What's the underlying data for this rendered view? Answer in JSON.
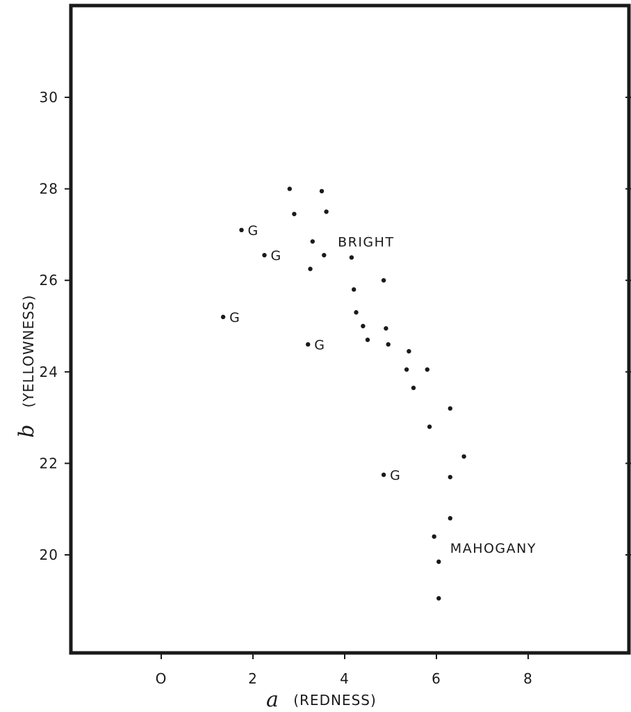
{
  "chart_data": {
    "type": "scatter",
    "title": "",
    "xlabel_symbol": "a",
    "xlabel": "(REDNESS)",
    "ylabel_symbol": "b",
    "ylabel": "(YELLOWNESS)",
    "xlim": [
      -2,
      10
    ],
    "ylim": [
      18,
      32
    ],
    "x_ticks": [
      {
        "value": 0,
        "label": "O"
      },
      {
        "value": 2,
        "label": "2"
      },
      {
        "value": 4,
        "label": "4"
      },
      {
        "value": 6,
        "label": "6"
      },
      {
        "value": 8,
        "label": "8"
      }
    ],
    "y_ticks": [
      {
        "value": 20,
        "label": "20"
      },
      {
        "value": 22,
        "label": "22"
      },
      {
        "value": 24,
        "label": "24"
      },
      {
        "value": 26,
        "label": "26"
      },
      {
        "value": 28,
        "label": "28"
      },
      {
        "value": 30,
        "label": "30"
      }
    ],
    "grid": false,
    "points": [
      {
        "x": 2.8,
        "y": 28.0,
        "label": ""
      },
      {
        "x": 3.5,
        "y": 27.95,
        "label": ""
      },
      {
        "x": 2.9,
        "y": 27.45,
        "label": ""
      },
      {
        "x": 3.6,
        "y": 27.5,
        "label": ""
      },
      {
        "x": 1.75,
        "y": 27.1,
        "label": "G"
      },
      {
        "x": 3.3,
        "y": 26.85,
        "label": ""
      },
      {
        "x": 2.25,
        "y": 26.55,
        "label": "G"
      },
      {
        "x": 3.55,
        "y": 26.55,
        "label": ""
      },
      {
        "x": 4.15,
        "y": 26.5,
        "label": ""
      },
      {
        "x": 3.25,
        "y": 26.25,
        "label": ""
      },
      {
        "x": 4.85,
        "y": 26.0,
        "label": ""
      },
      {
        "x": 4.2,
        "y": 25.8,
        "label": ""
      },
      {
        "x": 1.35,
        "y": 25.2,
        "label": "G"
      },
      {
        "x": 4.25,
        "y": 25.3,
        "label": ""
      },
      {
        "x": 4.4,
        "y": 25.0,
        "label": ""
      },
      {
        "x": 4.9,
        "y": 24.95,
        "label": ""
      },
      {
        "x": 4.5,
        "y": 24.7,
        "label": ""
      },
      {
        "x": 3.2,
        "y": 24.6,
        "label": "G"
      },
      {
        "x": 4.95,
        "y": 24.6,
        "label": ""
      },
      {
        "x": 5.4,
        "y": 24.45,
        "label": ""
      },
      {
        "x": 5.35,
        "y": 24.05,
        "label": ""
      },
      {
        "x": 5.8,
        "y": 24.05,
        "label": ""
      },
      {
        "x": 5.5,
        "y": 23.65,
        "label": ""
      },
      {
        "x": 6.3,
        "y": 23.2,
        "label": ""
      },
      {
        "x": 5.85,
        "y": 22.8,
        "label": ""
      },
      {
        "x": 6.6,
        "y": 22.15,
        "label": ""
      },
      {
        "x": 4.85,
        "y": 21.75,
        "label": "G"
      },
      {
        "x": 6.3,
        "y": 21.7,
        "label": ""
      },
      {
        "x": 6.3,
        "y": 20.8,
        "label": ""
      },
      {
        "x": 5.95,
        "y": 20.4,
        "label": ""
      },
      {
        "x": 6.05,
        "y": 19.85,
        "label": ""
      },
      {
        "x": 6.05,
        "y": 19.05,
        "label": ""
      }
    ],
    "annotations": [
      {
        "text": "BRIGHT",
        "x": 3.85,
        "y": 26.85
      },
      {
        "text": "MAHOGANY",
        "x": 6.3,
        "y": 20.15
      }
    ]
  }
}
